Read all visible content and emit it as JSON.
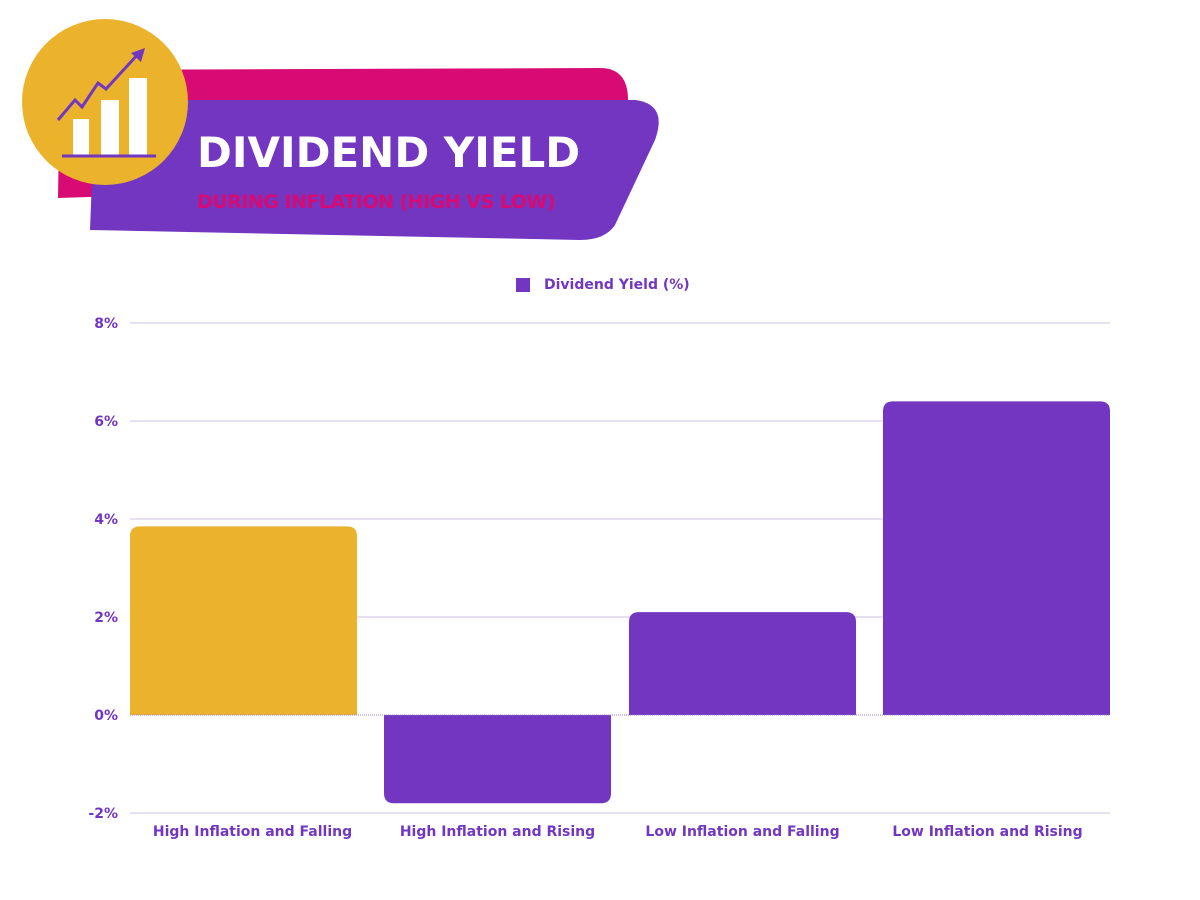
{
  "header": {
    "title": "DIVIDEND YIELD",
    "subtitle": "DURING  INFLATION (HIGH VS LOW)",
    "icon": "growth-chart-icon"
  },
  "colors": {
    "purple": "#7236c1",
    "gold": "#ebb32c",
    "magenta": "#d80a73",
    "grid": "#e6e0f2"
  },
  "chart_data": {
    "type": "bar",
    "title": "DIVIDEND YIELD DURING INFLATION (HIGH VS LOW)",
    "legend": [
      "Dividend Yield (%)"
    ],
    "legend_position": "top-center",
    "categories": [
      "High Inflation and Falling",
      "High Inflation and Rising",
      "Low Inflation and Falling",
      "Low Inflation and Rising"
    ],
    "series": [
      {
        "name": "Dividend Yield (%)",
        "values": [
          3.85,
          -1.8,
          2.1,
          6.4
        ]
      }
    ],
    "bar_colors": [
      "#ebb32c",
      "#7236c1",
      "#7236c1",
      "#7236c1"
    ],
    "ylim": [
      -2,
      8
    ],
    "yticks": [
      -2,
      0,
      2,
      4,
      6,
      8
    ],
    "ytick_labels": [
      "-2%",
      "0%",
      "2%",
      "4%",
      "6%",
      "8%"
    ],
    "xlabel": "",
    "ylabel": "",
    "grid": true
  }
}
